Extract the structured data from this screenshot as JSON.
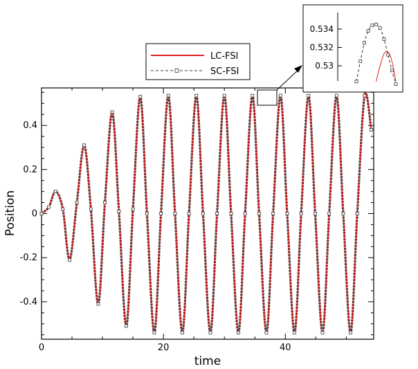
{
  "chart_data": [
    {
      "type": "line",
      "title": "",
      "xlabel": "time",
      "ylabel": "Position",
      "xlim": [
        0,
        54.5
      ],
      "ylim": [
        -0.57,
        0.57
      ],
      "xticks": [
        0,
        20,
        40
      ],
      "yticks": [
        -0.4,
        -0.2,
        0,
        0.2,
        0.4
      ],
      "x_tick_labels": [
        "0",
        "20",
        "40"
      ],
      "y_tick_labels": [
        "-0.4",
        "-0.2",
        "0",
        "0.2",
        "0.4"
      ],
      "grid": false,
      "legend_position": "top-left above plot",
      "series": [
        {
          "name": "LC-FSI",
          "color": "#e02020",
          "style": "solid",
          "x": [
            0,
            1.2,
            2.3,
            3.5,
            4.6,
            5.8,
            7.0,
            8.1,
            9.3,
            10.4,
            11.6,
            12.7,
            13.9,
            15.0,
            16.2,
            17.3,
            18.5,
            19.6,
            20.8,
            21.9,
            23.1,
            24.2,
            25.4,
            26.5,
            27.7,
            28.8,
            30.0,
            31.1,
            32.3,
            33.4,
            34.6,
            35.7,
            36.9,
            38.0,
            39.2,
            40.3,
            41.5,
            42.6,
            43.8,
            44.9,
            46.1,
            47.2,
            48.4,
            49.5,
            50.7,
            51.8,
            53.0,
            54.1
          ],
          "y": [
            0,
            0.03,
            0.1,
            0.02,
            -0.21,
            0.05,
            0.31,
            0.02,
            -0.41,
            0.05,
            0.46,
            0.01,
            -0.51,
            0.02,
            0.53,
            0.0,
            -0.54,
            0.0,
            0.535,
            0.0,
            -0.54,
            0.0,
            0.535,
            0.0,
            -0.54,
            0.0,
            0.535,
            0.0,
            -0.54,
            0.0,
            0.535,
            0.0,
            -0.54,
            0.0,
            0.535,
            0.0,
            -0.54,
            0.0,
            0.535,
            0.0,
            -0.54,
            0.0,
            0.535,
            0.0,
            -0.54,
            0.0,
            0.535,
            0.38
          ]
        },
        {
          "name": "SC-FSI",
          "color": "#333333",
          "style": "dashed with square markers",
          "x": [
            0,
            1.2,
            2.3,
            3.5,
            4.6,
            5.8,
            7.0,
            8.1,
            9.3,
            10.4,
            11.6,
            12.7,
            13.9,
            15.0,
            16.2,
            17.3,
            18.5,
            19.6,
            20.8,
            21.9,
            23.1,
            24.2,
            25.4,
            26.5,
            27.7,
            28.8,
            30.0,
            31.1,
            32.3,
            33.4,
            34.6,
            35.7,
            36.9,
            38.0,
            39.2,
            40.3,
            41.5,
            42.6,
            43.8,
            44.9,
            46.1,
            47.2,
            48.4,
            49.5,
            50.7,
            51.8,
            53.0,
            54.1
          ],
          "y": [
            0,
            0.03,
            0.1,
            0.02,
            -0.21,
            0.05,
            0.31,
            0.02,
            -0.41,
            0.05,
            0.46,
            0.01,
            -0.51,
            0.02,
            0.53,
            0.0,
            -0.54,
            0.0,
            0.535,
            0.0,
            -0.54,
            0.0,
            0.535,
            0.0,
            -0.54,
            0.0,
            0.535,
            0.0,
            -0.54,
            0.0,
            0.535,
            0.0,
            -0.54,
            0.0,
            0.535,
            0.0,
            -0.54,
            0.0,
            0.535,
            0.0,
            -0.54,
            0.0,
            0.535,
            0.0,
            -0.54,
            0.0,
            0.535,
            0.38
          ]
        }
      ]
    },
    {
      "type": "line",
      "title": "",
      "xlabel": "",
      "ylabel": "",
      "ylim": [
        0.5285,
        0.5355
      ],
      "yticks": [
        0.53,
        0.532,
        0.534
      ],
      "y_tick_labels": [
        "0.53",
        "0.532",
        "0.534"
      ],
      "grid": false,
      "series": [
        {
          "name": "SC-FSI",
          "color": "#333333",
          "style": "dashed with square markers",
          "x": [
            0,
            0.1,
            0.2,
            0.3,
            0.4,
            0.5,
            0.6,
            0.7,
            0.8,
            0.9,
            1.0
          ],
          "y": [
            0.5283,
            0.5305,
            0.5325,
            0.5338,
            0.5344,
            0.5345,
            0.5341,
            0.5329,
            0.5312,
            0.5295,
            0.528
          ]
        },
        {
          "name": "LC-FSI",
          "color": "#e02020",
          "style": "solid",
          "x": [
            0.5,
            0.6,
            0.7,
            0.8,
            0.9,
            1.0
          ],
          "y": [
            0.5283,
            0.53,
            0.5313,
            0.5315,
            0.5305,
            0.5283
          ]
        }
      ]
    }
  ],
  "legend": {
    "items": [
      {
        "label": "LC-FSI",
        "color": "#e02020",
        "style": "solid"
      },
      {
        "label": "SC-FSI",
        "color": "#333333",
        "style": "dashed"
      }
    ]
  }
}
